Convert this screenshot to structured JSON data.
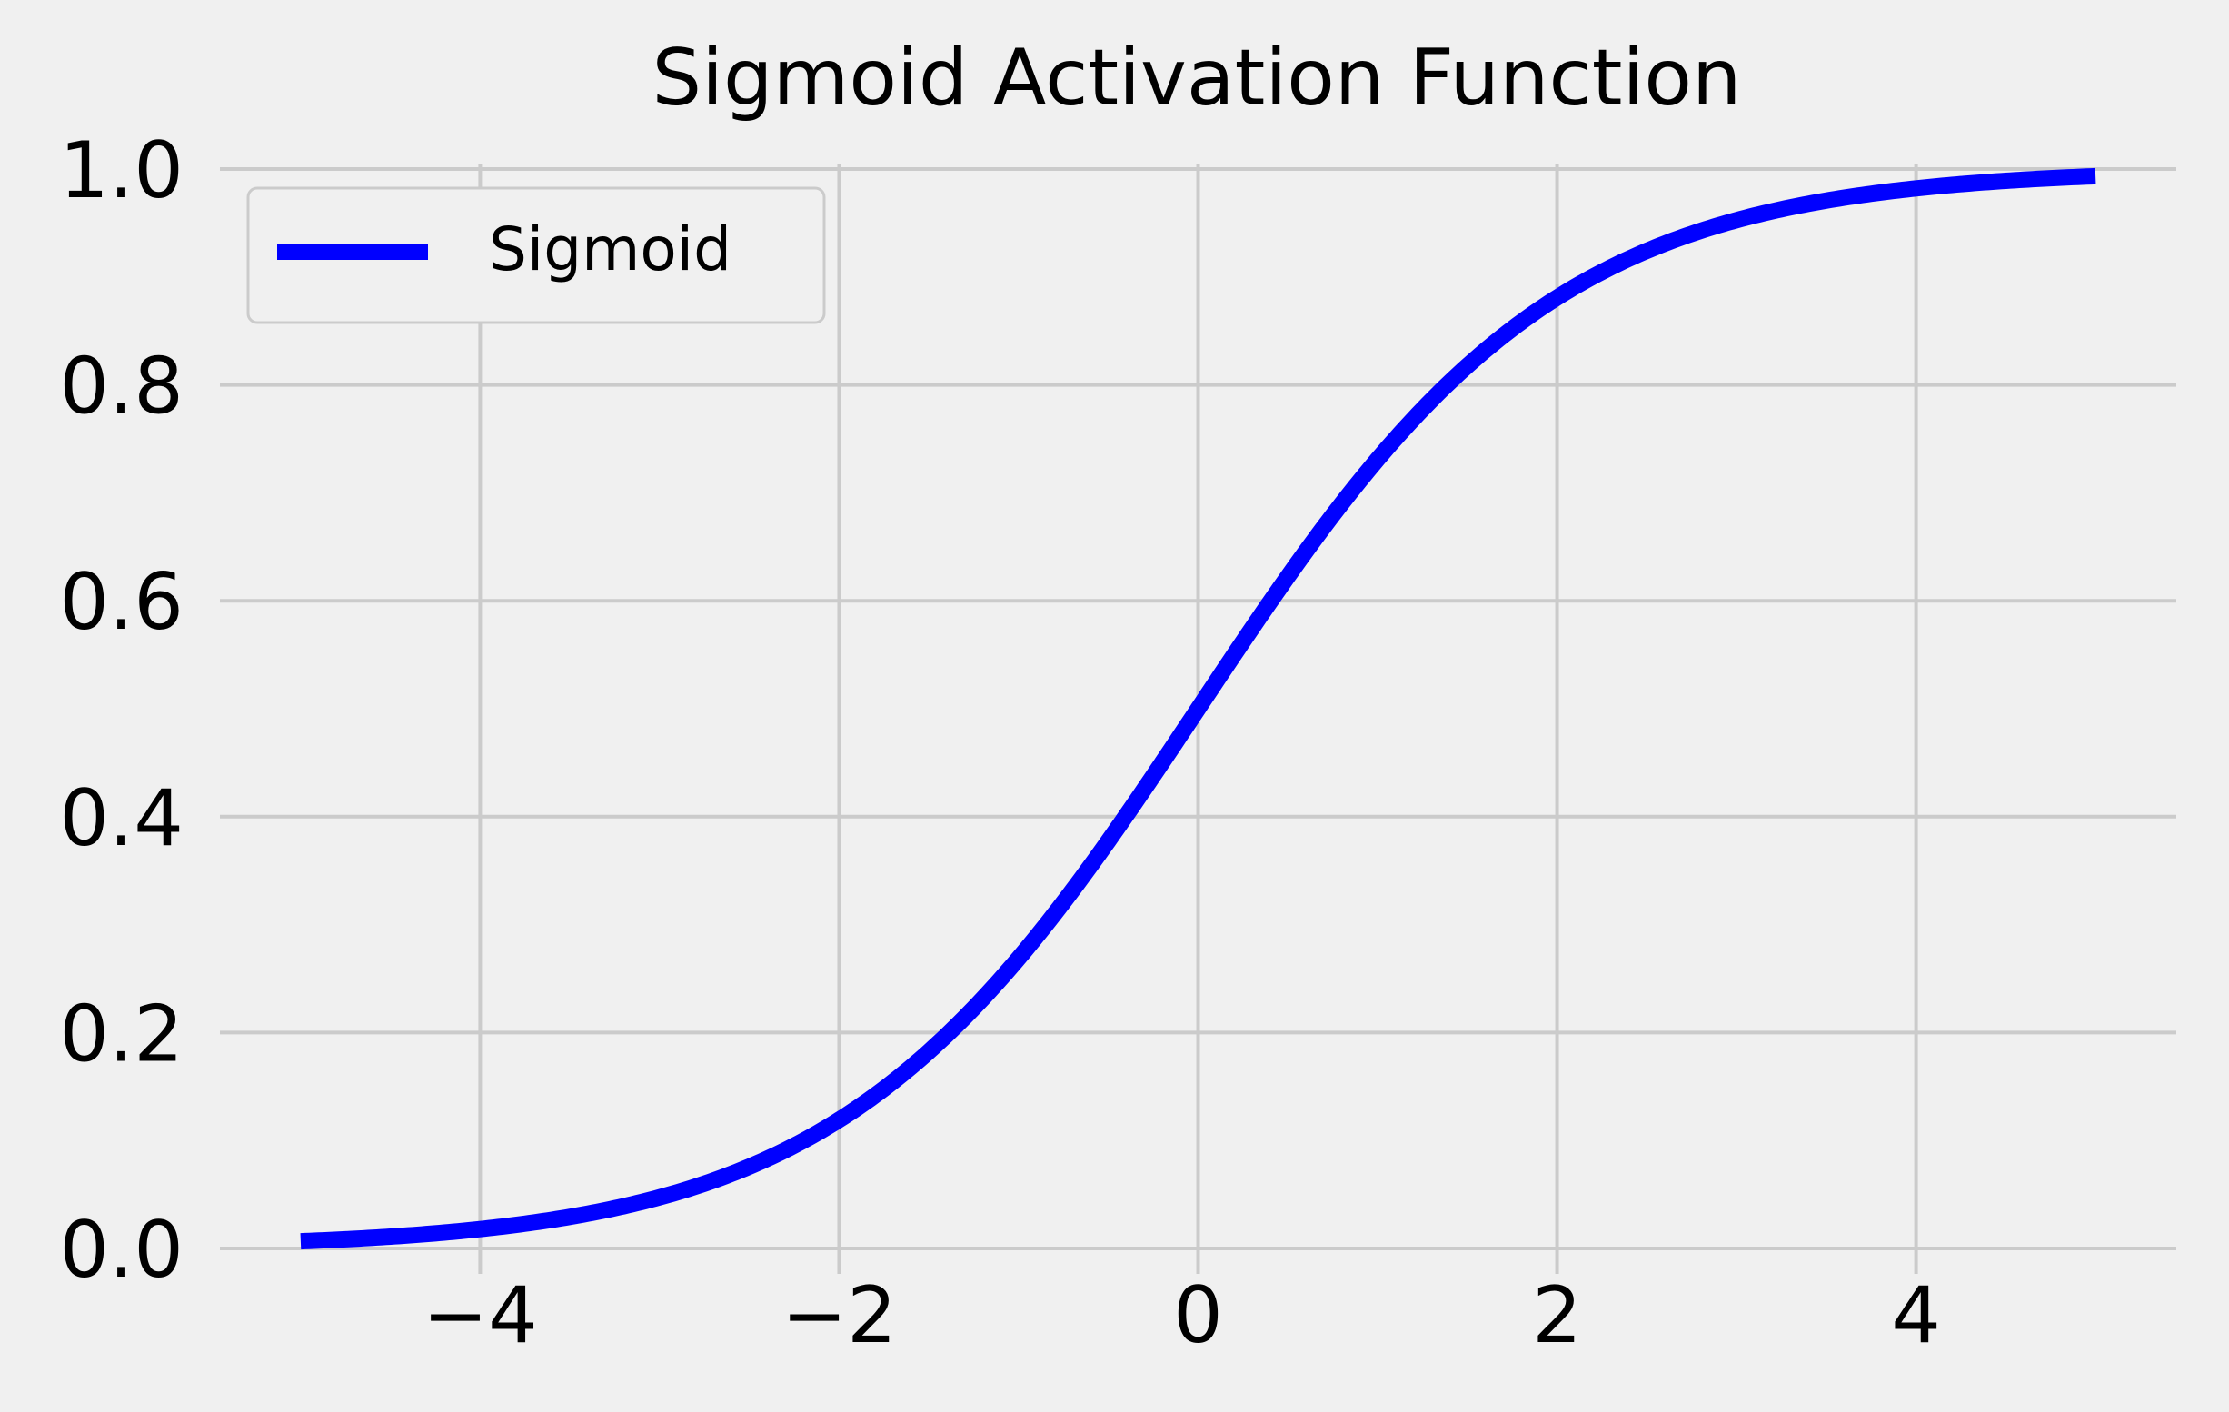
{
  "chart_data": {
    "type": "line",
    "title": "Sigmoid Activation Function",
    "xlabel": "",
    "ylabel": "",
    "xlim": [
      -5.45,
      5.45
    ],
    "ylim": [
      -0.005,
      1.005
    ],
    "x_ticks": [
      -4,
      -2,
      0,
      2,
      4
    ],
    "x_tick_labels": [
      "−4",
      "−2",
      "0",
      "2",
      "4"
    ],
    "y_ticks": [
      0.0,
      0.2,
      0.4,
      0.6,
      0.8,
      1.0
    ],
    "y_tick_labels": [
      "0.0",
      "0.2",
      "0.4",
      "0.6",
      "0.8",
      "1.0"
    ],
    "grid": true,
    "legend_position": "top-left",
    "background_color": "#f0f0f0",
    "grid_color": "#cbcbcb",
    "series": [
      {
        "name": "Sigmoid",
        "color": "#0000ff",
        "x_range": [
          -5,
          5
        ],
        "x": [
          -5,
          -4.5,
          -4,
          -3.5,
          -3,
          -2.5,
          -2,
          -1.5,
          -1,
          -0.5,
          0,
          0.5,
          1,
          1.5,
          2,
          2.5,
          3,
          3.5,
          4,
          4.5,
          5
        ],
        "y": [
          0.0067,
          0.011,
          0.018,
          0.0293,
          0.0474,
          0.0759,
          0.1192,
          0.1824,
          0.2689,
          0.3775,
          0.5,
          0.6225,
          0.7311,
          0.8176,
          0.8808,
          0.9241,
          0.9526,
          0.9707,
          0.982,
          0.989,
          0.9933
        ]
      }
    ]
  }
}
